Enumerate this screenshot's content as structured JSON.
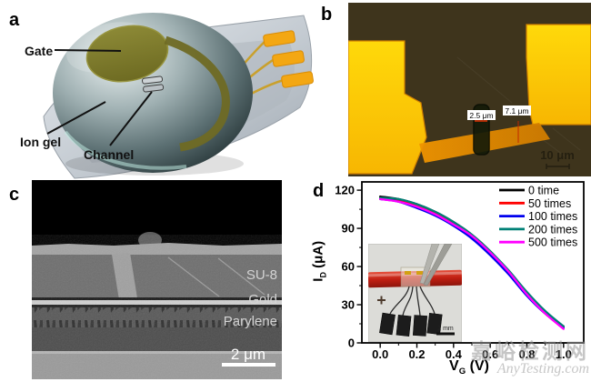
{
  "panel_a": {
    "label": "a",
    "gate_label": "Gate",
    "ion_gel_label": "Ion gel",
    "channel_label": "Channel"
  },
  "panel_b": {
    "label": "b",
    "measurement_1": "2.5 μm",
    "measurement_2": "7.1 μm",
    "scale_bar": "10 μm"
  },
  "panel_c": {
    "label": "c",
    "layer_su8": "SU-8",
    "layer_gold": "Gold",
    "layer_parylene": "Parylene",
    "scale_bar": "2 μm"
  },
  "panel_d": {
    "label": "d",
    "inset_scale_bar": "2 mm",
    "ylabel_main": "I",
    "ylabel_sub": "D",
    "ylabel_unit": " (μA)",
    "xlabel_main": "V",
    "xlabel_sub": "G",
    "xlabel_unit": " (V)"
  },
  "chart_data": {
    "type": "line",
    "title": "",
    "xlabel": "V_G (V)",
    "ylabel": "I_D (μA)",
    "x": [
      0.0,
      0.1,
      0.2,
      0.3,
      0.4,
      0.5,
      0.6,
      0.7,
      0.8,
      0.9,
      1.0
    ],
    "series": [
      {
        "name": "0 time",
        "color": "#000000",
        "values": [
          115,
          113,
          109,
          103,
          95,
          85,
          72,
          56,
          39,
          24,
          13
        ]
      },
      {
        "name": "50 times",
        "color": "#ff0000",
        "values": [
          114,
          112,
          108,
          102,
          94,
          84,
          71,
          55,
          38,
          23,
          12
        ]
      },
      {
        "name": "100 times",
        "color": "#0000ee",
        "values": [
          113,
          111,
          106,
          100,
          92,
          82,
          69,
          54,
          37,
          23,
          12
        ]
      },
      {
        "name": "200 times",
        "color": "#008076",
        "values": [
          114,
          113,
          109,
          103,
          95,
          85,
          72,
          57,
          40,
          25,
          13
        ]
      },
      {
        "name": "500 times",
        "color": "#ff00ff",
        "values": [
          113,
          111,
          107,
          101,
          93,
          84,
          71,
          56,
          38,
          23,
          11
        ]
      }
    ],
    "xticks": [
      0.0,
      0.2,
      0.4,
      0.6,
      0.8,
      1.0
    ],
    "yticks": [
      0,
      30,
      60,
      90,
      120
    ],
    "xminor_step": 0.1,
    "yminor_step": 15,
    "xlim": [
      -0.1,
      1.11
    ],
    "ylim": [
      0,
      126.5
    ],
    "grid": false,
    "legend_position": "top-right"
  },
  "watermark": {
    "line1": "嘉峪检测网",
    "line2": "AnyTesting.com"
  }
}
